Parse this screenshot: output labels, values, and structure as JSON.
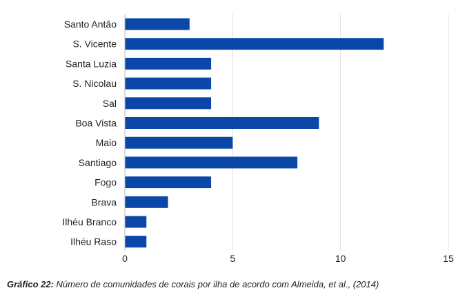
{
  "chart_data": {
    "type": "bar",
    "orientation": "horizontal",
    "categories": [
      "Santo Antão",
      "S. Vicente",
      "Santa Luzia",
      "S. Nicolau",
      "Sal",
      "Boa Vista",
      "Maio",
      "Santiago",
      "Fogo",
      "Brava",
      "Ilhéu Branco",
      "Ilhéu Raso"
    ],
    "values": [
      3,
      12,
      4,
      4,
      4,
      9,
      5,
      8,
      4,
      2,
      1,
      1
    ],
    "xlim": [
      0,
      15
    ],
    "xticks": [
      "0",
      "5",
      "10",
      "15"
    ],
    "grid": true,
    "legend": "none",
    "bar_color": "#0b47a8",
    "grid_color": "#e0e0e0"
  },
  "caption": {
    "prefix": "Gráfico 22:",
    "text": "Número de comunidades de corais por ilha de acordo com Almeida, et al., (2014)"
  }
}
